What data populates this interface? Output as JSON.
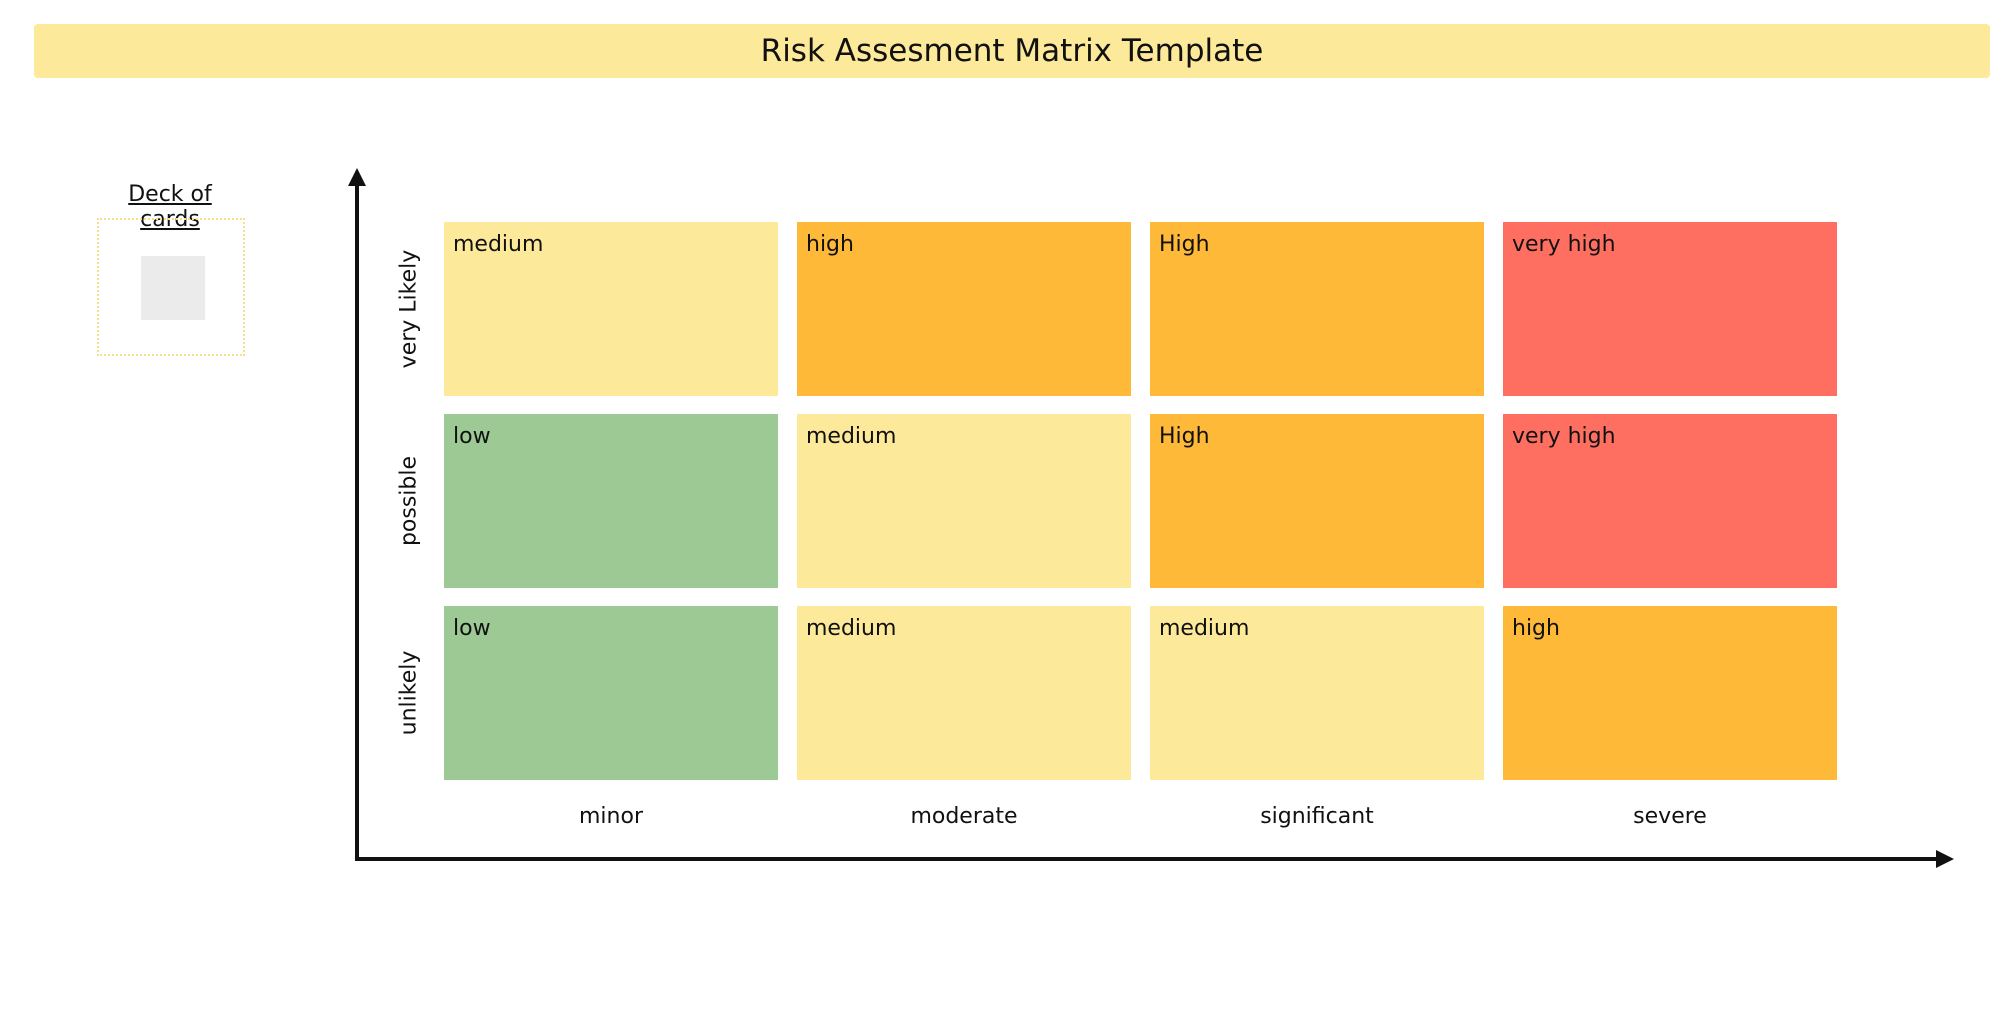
{
  "title": "Risk Assesment Matrix Template",
  "colors": {
    "title_bg": "#fde99a",
    "low": "#9dc995",
    "medium": "#fde99a",
    "high": "#feb938",
    "very_high": "#ff6f61"
  },
  "deck": {
    "label": "Deck of cards"
  },
  "matrix": {
    "rows": [
      {
        "label": "very Likely",
        "cells": [
          {
            "text": "medium",
            "level": "medium"
          },
          {
            "text": "high",
            "level": "high"
          },
          {
            "text": "High",
            "level": "high"
          },
          {
            "text": "very high",
            "level": "very_high"
          }
        ]
      },
      {
        "label": "possible",
        "cells": [
          {
            "text": "low",
            "level": "low"
          },
          {
            "text": "medium",
            "level": "medium"
          },
          {
            "text": "High",
            "level": "high"
          },
          {
            "text": "very high",
            "level": "very_high"
          }
        ]
      },
      {
        "label": "unlikely",
        "cells": [
          {
            "text": "low",
            "level": "low"
          },
          {
            "text": "medium",
            "level": "medium"
          },
          {
            "text": "medium",
            "level": "medium"
          },
          {
            "text": "high",
            "level": "high"
          }
        ]
      }
    ],
    "columns": [
      "minor",
      "moderate",
      "significant",
      "severe"
    ]
  }
}
